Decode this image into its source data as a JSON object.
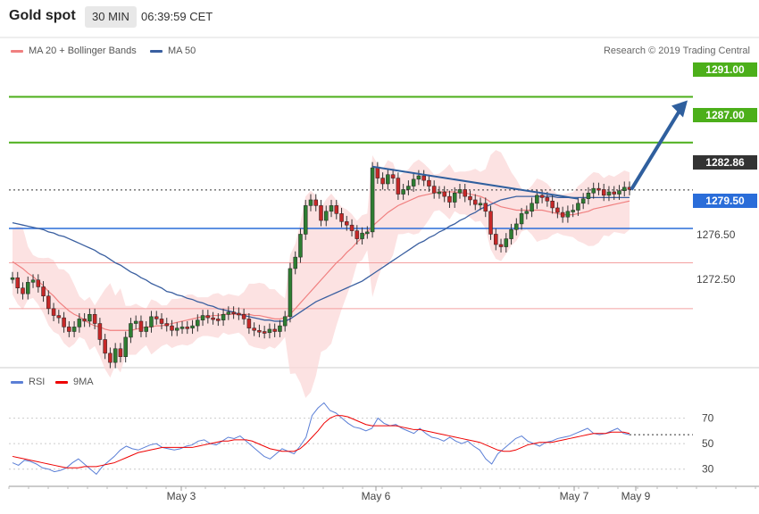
{
  "header": {
    "title": "Gold spot",
    "timeframe": "30 MIN",
    "time": "06:39:59 CET"
  },
  "legend": {
    "ma20": "MA 20 + Bollinger Bands",
    "ma50": "MA 50",
    "credit": "Research © 2019 Trading Central"
  },
  "rsi_legend": {
    "rsi": "RSI",
    "ma9": "9MA"
  },
  "colors": {
    "up": "#2e7d32",
    "down": "#c62828",
    "resistance": "#4caf1a",
    "ma50": "#3a5fa0",
    "ma20": "#f08080",
    "blue_level": "#2a6dd9",
    "arrow": "#2f5f9e",
    "last": "#333333"
  },
  "chart_data": [
    {
      "type": "candlestick",
      "title": "Gold spot",
      "ylim": [
        1267.5,
        1294
      ],
      "x_labels": [
        "May 3",
        "May 6",
        "May 7",
        "May 9"
      ],
      "levels": [
        {
          "value": 1291.0,
          "label": "1291.00",
          "kind": "resistance"
        },
        {
          "value": 1287.0,
          "label": "1287.00",
          "kind": "resistance"
        },
        {
          "value": 1282.86,
          "label": "1282.86",
          "kind": "last"
        },
        {
          "value": 1279.5,
          "label": "1279.50",
          "kind": "pivot"
        },
        {
          "value": 1276.5,
          "label": "1276.50",
          "kind": "support"
        },
        {
          "value": 1272.5,
          "label": "1272.50",
          "kind": "support"
        }
      ],
      "closes": [
        1275.2,
        1274.3,
        1273.8,
        1274.8,
        1275.0,
        1274.4,
        1273.6,
        1272.5,
        1271.9,
        1271.7,
        1270.9,
        1270.5,
        1270.9,
        1271.6,
        1271.4,
        1272.0,
        1271.2,
        1269.8,
        1268.6,
        1267.8,
        1269.0,
        1268.3,
        1270.0,
        1271.2,
        1271.4,
        1270.5,
        1270.9,
        1271.8,
        1271.6,
        1271.2,
        1271.0,
        1270.6,
        1270.8,
        1270.9,
        1270.8,
        1271.0,
        1271.5,
        1271.9,
        1271.7,
        1271.6,
        1271.5,
        1272.0,
        1272.2,
        1272.1,
        1272.0,
        1271.6,
        1270.8,
        1270.6,
        1270.5,
        1270.4,
        1270.7,
        1270.5,
        1271.0,
        1271.8,
        1276.0,
        1277.0,
        1279.0,
        1281.5,
        1282.0,
        1281.5,
        1280.2,
        1281.0,
        1281.5,
        1280.8,
        1280.1,
        1279.8,
        1279.3,
        1278.6,
        1279.1,
        1279.2,
        1284.8,
        1283.9,
        1283.4,
        1284.2,
        1283.9,
        1282.5,
        1282.9,
        1283.2,
        1283.8,
        1284.1,
        1283.7,
        1283.2,
        1282.6,
        1282.7,
        1282.3,
        1281.8,
        1282.6,
        1282.9,
        1282.3,
        1282.0,
        1281.6,
        1281.7,
        1281.0,
        1279.0,
        1278.1,
        1277.9,
        1278.6,
        1279.4,
        1279.9,
        1280.8,
        1281.0,
        1281.7,
        1282.4,
        1282.2,
        1281.9,
        1281.3,
        1280.9,
        1280.5,
        1281.0,
        1281.1,
        1281.7,
        1282.1,
        1282.6,
        1283.0,
        1282.9,
        1282.4,
        1282.7,
        1282.5,
        1282.8,
        1283.1,
        1282.9
      ],
      "ma20": [
        1276.6,
        1276.3,
        1276.0,
        1275.6,
        1275.3,
        1274.9,
        1274.5,
        1274.0,
        1273.6,
        1273.1,
        1272.7,
        1272.3,
        1272.0,
        1271.8,
        1271.5,
        1271.2,
        1271.0,
        1270.9,
        1270.7,
        1270.6,
        1270.6,
        1270.6,
        1270.6,
        1270.6,
        1270.7,
        1270.8,
        1270.9,
        1270.9,
        1271.0,
        1271.0,
        1271.1,
        1271.2,
        1271.3,
        1271.4,
        1271.5,
        1271.6,
        1271.7,
        1271.8,
        1271.8,
        1271.9,
        1271.9,
        1272.0,
        1272.0,
        1272.0,
        1272.0,
        1272.0,
        1272.0,
        1271.9,
        1271.9,
        1271.8,
        1271.7,
        1271.6,
        1271.6,
        1271.7,
        1272.0,
        1272.5,
        1273.0,
        1273.5,
        1274.0,
        1274.5,
        1275.0,
        1275.5,
        1276.0,
        1276.5,
        1276.9,
        1277.4,
        1277.8,
        1278.3,
        1278.7,
        1279.2,
        1279.7,
        1280.1,
        1280.5,
        1280.9,
        1281.2,
        1281.5,
        1281.7,
        1281.9,
        1282.1,
        1282.3,
        1282.4,
        1282.5,
        1282.6,
        1282.7,
        1282.7,
        1282.7,
        1282.7,
        1282.6,
        1282.6,
        1282.5,
        1282.4,
        1282.3,
        1282.1,
        1281.8,
        1281.6,
        1281.4,
        1281.3,
        1281.2,
        1281.1,
        1281.1,
        1281.1,
        1281.1,
        1281.1,
        1281.1,
        1281.0,
        1280.9,
        1280.8,
        1280.7,
        1280.7,
        1280.7,
        1280.8,
        1280.9,
        1281.0,
        1281.2,
        1281.3,
        1281.4,
        1281.5,
        1281.6,
        1281.7,
        1281.8,
        1281.9
      ],
      "ma50": [
        1280.0,
        1279.9,
        1279.8,
        1279.7,
        1279.6,
        1279.5,
        1279.4,
        1279.2,
        1279.1,
        1278.9,
        1278.8,
        1278.6,
        1278.4,
        1278.2,
        1278.0,
        1277.8,
        1277.6,
        1277.3,
        1277.1,
        1276.8,
        1276.5,
        1276.3,
        1276.0,
        1275.7,
        1275.5,
        1275.2,
        1275.0,
        1274.7,
        1274.5,
        1274.3,
        1274.0,
        1273.9,
        1273.7,
        1273.6,
        1273.4,
        1273.3,
        1273.1,
        1273.0,
        1272.8,
        1272.7,
        1272.5,
        1272.4,
        1272.3,
        1272.2,
        1272.0,
        1271.9,
        1271.8,
        1271.7,
        1271.6,
        1271.5,
        1271.5,
        1271.4,
        1271.4,
        1271.4,
        1271.6,
        1271.9,
        1272.2,
        1272.5,
        1272.8,
        1273.1,
        1273.3,
        1273.5,
        1273.7,
        1273.9,
        1274.1,
        1274.3,
        1274.5,
        1274.7,
        1274.9,
        1275.2,
        1275.5,
        1275.8,
        1276.1,
        1276.4,
        1276.7,
        1277.0,
        1277.3,
        1277.6,
        1277.9,
        1278.2,
        1278.4,
        1278.7,
        1278.9,
        1279.2,
        1279.4,
        1279.7,
        1279.9,
        1280.2,
        1280.4,
        1280.7,
        1280.9,
        1281.2,
        1281.4,
        1281.6,
        1281.8,
        1282.0,
        1282.1,
        1282.2,
        1282.3,
        1282.3,
        1282.3,
        1282.3,
        1282.3,
        1282.3,
        1282.3,
        1282.3,
        1282.2,
        1282.2,
        1282.2,
        1282.2,
        1282.2,
        1282.2,
        1282.2,
        1282.2,
        1282.2,
        1282.2,
        1282.2,
        1282.2,
        1282.2,
        1282.2,
        1282.2
      ],
      "trendline": {
        "from": [
          1284.9
        ],
        "to": [
          1282.1
        ]
      },
      "arrow_target": 1291.0
    },
    {
      "type": "line",
      "title": "RSI",
      "ylim": [
        20,
        90
      ],
      "y_ticks": [
        30,
        50,
        70
      ],
      "series": [
        {
          "name": "RSI",
          "values": [
            35,
            33,
            37,
            36,
            34,
            31,
            30,
            28,
            29,
            31,
            35,
            38,
            34,
            30,
            26,
            32,
            36,
            40,
            45,
            48,
            46,
            45,
            47,
            49,
            50,
            47,
            46,
            45,
            46,
            48,
            49,
            52,
            53,
            50,
            49,
            52,
            55,
            54,
            56,
            52,
            48,
            44,
            40,
            38,
            42,
            46,
            44,
            42,
            48,
            55,
            72,
            78,
            82,
            76,
            74,
            70,
            66,
            63,
            62,
            60,
            62,
            70,
            66,
            64,
            65,
            62,
            60,
            58,
            62,
            58,
            55,
            54,
            52,
            55,
            52,
            50,
            52,
            48,
            45,
            38,
            34,
            42,
            46,
            50,
            54,
            56,
            52,
            50,
            48,
            51,
            52,
            54,
            55,
            56,
            58,
            60,
            62,
            58,
            57,
            58,
            60,
            62,
            58,
            57
          ]
        },
        {
          "name": "9MA",
          "values": [
            40,
            39,
            38,
            37,
            36,
            35,
            34,
            33,
            32,
            31,
            31,
            31,
            32,
            32,
            32,
            33,
            34,
            35,
            37,
            39,
            41,
            43,
            44,
            45,
            46,
            47,
            47,
            47,
            47,
            47,
            47,
            48,
            49,
            50,
            51,
            52,
            52,
            53,
            53,
            53,
            52,
            50,
            48,
            46,
            45,
            44,
            44,
            44,
            46,
            50,
            55,
            60,
            66,
            70,
            72,
            72,
            71,
            69,
            67,
            65,
            64,
            64,
            64,
            64,
            64,
            63,
            62,
            61,
            61,
            60,
            59,
            58,
            57,
            56,
            55,
            54,
            53,
            52,
            51,
            49,
            47,
            45,
            44,
            44,
            45,
            47,
            49,
            50,
            51,
            51,
            51,
            52,
            53,
            54,
            55,
            56,
            57,
            58,
            58,
            58,
            59,
            59,
            59,
            58
          ]
        }
      ]
    }
  ]
}
